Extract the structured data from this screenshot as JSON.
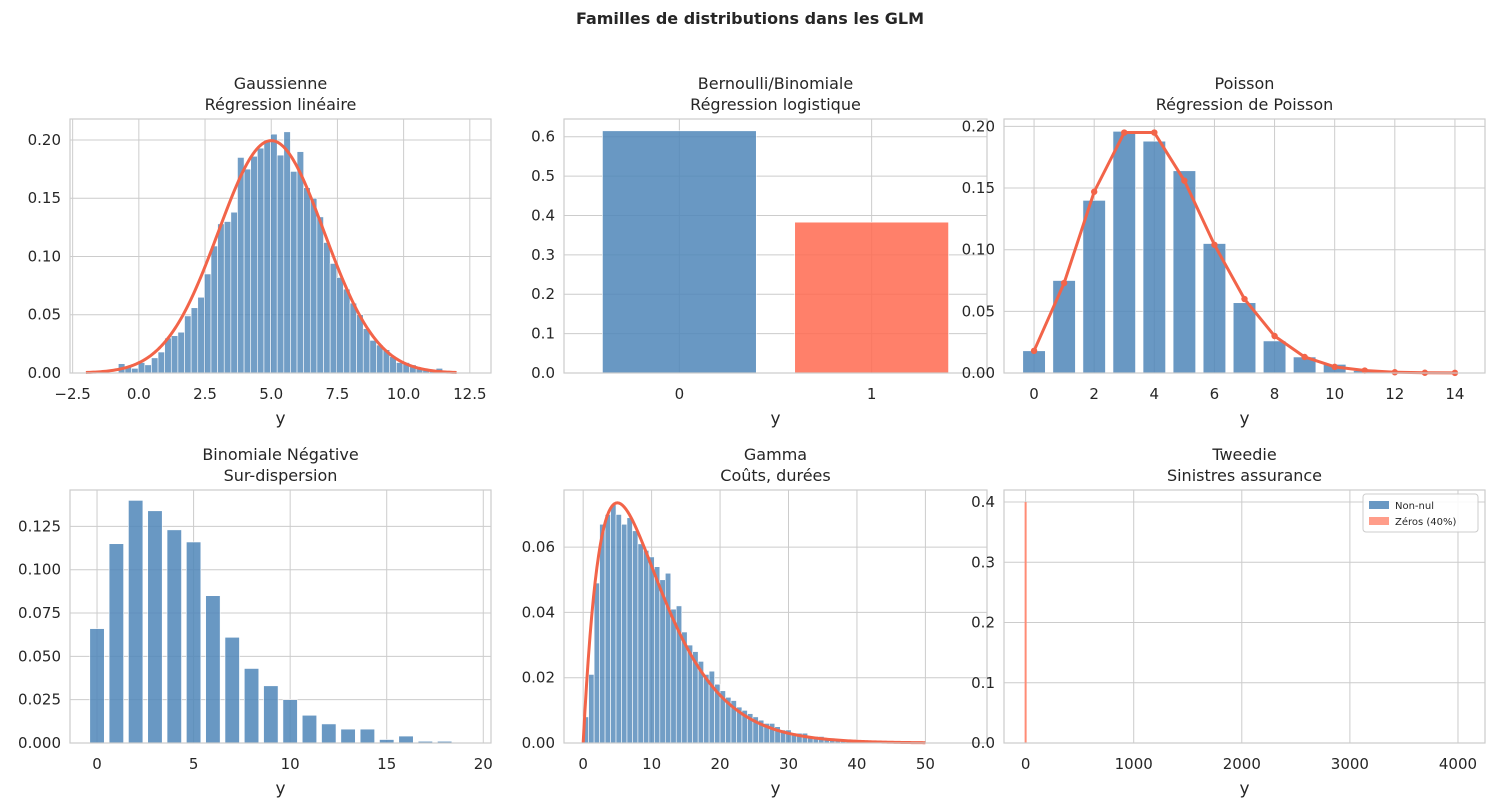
{
  "figure": {
    "title": "Familles de distributions dans les GLM"
  },
  "colors": {
    "bar": "#4f86b8",
    "accent": "#f26449",
    "accent_light": "#ff8c75"
  },
  "chart_data": [
    {
      "type": "bar",
      "title_lines": [
        "Gaussienne",
        "Régression linéaire"
      ],
      "xlabel": "y",
      "xlim": [
        -2.6,
        13.3
      ],
      "ylim": [
        0,
        0.218
      ],
      "xticks": [
        -2.5,
        0.0,
        2.5,
        5.0,
        7.5,
        10.0,
        12.5
      ],
      "xtick_labels": [
        "−2.5",
        "0.0",
        "2.5",
        "5.0",
        "7.5",
        "10.0",
        "12.5"
      ],
      "yticks": [
        0,
        0.05,
        0.1,
        0.15,
        0.2
      ],
      "ytick_labels": [
        "0.00",
        "0.05",
        "0.10",
        "0.15",
        "0.20"
      ],
      "bar_width": 0.25,
      "bar_opacity": 0.8,
      "bars_x": [
        -0.65,
        -0.4,
        -0.15,
        0.1,
        0.35,
        0.6,
        0.85,
        1.1,
        1.35,
        1.6,
        1.85,
        2.1,
        2.35,
        2.6,
        2.85,
        3.1,
        3.35,
        3.6,
        3.85,
        4.1,
        4.35,
        4.6,
        4.85,
        5.1,
        5.35,
        5.6,
        5.85,
        6.1,
        6.35,
        6.6,
        6.85,
        7.1,
        7.35,
        7.6,
        7.85,
        8.1,
        8.35,
        8.6,
        8.85,
        9.1,
        9.35,
        9.6,
        9.85,
        10.1,
        10.35,
        10.6,
        10.85,
        11.1,
        11.35,
        11.6
      ],
      "bars_y": [
        0.008,
        0.005,
        0.004,
        0.009,
        0.007,
        0.013,
        0.018,
        0.03,
        0.032,
        0.035,
        0.049,
        0.056,
        0.065,
        0.085,
        0.109,
        0.128,
        0.13,
        0.138,
        0.185,
        0.175,
        0.186,
        0.193,
        0.2,
        0.205,
        0.187,
        0.207,
        0.173,
        0.19,
        0.159,
        0.15,
        0.134,
        0.112,
        0.094,
        0.082,
        0.072,
        0.06,
        0.05,
        0.038,
        0.028,
        0.024,
        0.02,
        0.014,
        0.009,
        0.009,
        0.007,
        0.004,
        0.003,
        0.002,
        0.004,
        0.001
      ],
      "curve": {
        "kind": "normal",
        "mu": 5,
        "sigma": 2,
        "from": -2,
        "to": 12
      }
    },
    {
      "type": "bar",
      "title_lines": [
        "Bernoulli/Binomiale",
        "Régression logistique"
      ],
      "xlabel": "y",
      "xlim": [
        -0.6,
        1.6
      ],
      "ylim": [
        0,
        0.645
      ],
      "xticks": [
        0,
        1
      ],
      "xtick_labels": [
        "0",
        "1"
      ],
      "yticks": [
        0,
        0.1,
        0.2,
        0.3,
        0.4,
        0.5,
        0.6
      ],
      "ytick_labels": [
        "0.0",
        "0.1",
        "0.2",
        "0.3",
        "0.4",
        "0.5",
        "0.6"
      ],
      "bar_width": 0.8,
      "bar_opacity": 0.85,
      "bars_x": [
        0,
        1
      ],
      "bars_y": [
        0.615,
        0.383
      ],
      "bar_colors": [
        "#4f86b8",
        "#ff6a50"
      ]
    },
    {
      "type": "bar",
      "title_lines": [
        "Poisson",
        "Régression de Poisson"
      ],
      "xlabel": "y",
      "xlim": [
        -1.0,
        15.0
      ],
      "ylim": [
        0,
        0.206
      ],
      "xticks": [
        0,
        2,
        4,
        6,
        8,
        10,
        12,
        14
      ],
      "xtick_labels": [
        "0",
        "2",
        "4",
        "6",
        "8",
        "10",
        "12",
        "14"
      ],
      "yticks": [
        0,
        0.05,
        0.1,
        0.15,
        0.2
      ],
      "ytick_labels": [
        "0.00",
        "0.05",
        "0.10",
        "0.15",
        "0.20"
      ],
      "bar_width": 0.75,
      "bar_opacity": 0.85,
      "bars_x": [
        0,
        1,
        2,
        3,
        4,
        5,
        6,
        7,
        8,
        9,
        10,
        11,
        12,
        13,
        14
      ],
      "bars_y": [
        0.018,
        0.075,
        0.14,
        0.196,
        0.188,
        0.164,
        0.105,
        0.057,
        0.026,
        0.013,
        0.007,
        0.002,
        0.001,
        0.0005,
        0.0002
      ],
      "points": {
        "x": [
          0,
          1,
          2,
          3,
          4,
          5,
          6,
          7,
          8,
          9,
          10,
          11,
          12,
          13,
          14
        ],
        "y": [
          0.018,
          0.073,
          0.147,
          0.195,
          0.195,
          0.156,
          0.104,
          0.06,
          0.03,
          0.013,
          0.005,
          0.002,
          0.0006,
          0.0002,
          0.0001
        ]
      }
    },
    {
      "type": "bar",
      "title_lines": [
        "Binomiale Négative",
        "Sur-dispersion"
      ],
      "xlabel": "y",
      "xlim": [
        -1.4,
        20.4
      ],
      "ylim": [
        0,
        0.146
      ],
      "xticks": [
        0,
        5,
        10,
        15,
        20
      ],
      "xtick_labels": [
        "0",
        "5",
        "10",
        "15",
        "20"
      ],
      "yticks": [
        0,
        0.025,
        0.05,
        0.075,
        0.1,
        0.125
      ],
      "ytick_labels": [
        "0.000",
        "0.025",
        "0.050",
        "0.075",
        "0.100",
        "0.125"
      ],
      "bar_width": 0.75,
      "bar_opacity": 0.85,
      "bars_x": [
        0,
        1,
        2,
        3,
        4,
        5,
        6,
        7,
        8,
        9,
        10,
        11,
        12,
        13,
        14,
        15,
        16,
        17,
        18
      ],
      "bars_y": [
        0.066,
        0.115,
        0.14,
        0.134,
        0.123,
        0.116,
        0.085,
        0.061,
        0.043,
        0.033,
        0.025,
        0.016,
        0.011,
        0.008,
        0.008,
        0.002,
        0.004,
        0.001,
        0.001
      ]
    },
    {
      "type": "bar",
      "title_lines": [
        "Gamma",
        "Coûts, durées"
      ],
      "xlabel": "y",
      "xlim": [
        -2.8,
        59.0
      ],
      "ylim": [
        0,
        0.0775
      ],
      "xticks": [
        0,
        10,
        20,
        30,
        40,
        50
      ],
      "xtick_labels": [
        "0",
        "10",
        "20",
        "30",
        "40",
        "50"
      ],
      "yticks": [
        0,
        0.02,
        0.04,
        0.06
      ],
      "ytick_labels": [
        "0.00",
        "0.02",
        "0.04",
        "0.06"
      ],
      "bar_width": 0.8,
      "bar_opacity": 0.8,
      "bars_x": [
        0.4,
        1.2,
        2.0,
        2.8,
        3.6,
        4.4,
        5.2,
        6.0,
        6.8,
        7.6,
        8.4,
        9.2,
        10.0,
        10.8,
        11.6,
        12.4,
        13.2,
        14.0,
        14.8,
        15.6,
        16.4,
        17.2,
        18.0,
        18.8,
        19.6,
        20.4,
        21.2,
        22.0,
        22.8,
        23.6,
        24.4,
        25.2,
        26.0,
        26.8,
        27.6,
        28.4,
        29.2,
        30.0,
        30.8,
        31.6,
        32.4,
        33.2,
        34.0,
        34.8,
        35.6,
        36.4,
        37.2,
        38.0,
        38.8,
        39.6,
        40.4,
        41.2,
        42.0,
        43.6,
        45.2,
        47.6,
        49.2
      ],
      "bars_y": [
        0.008,
        0.021,
        0.049,
        0.067,
        0.07,
        0.073,
        0.07,
        0.067,
        0.069,
        0.065,
        0.061,
        0.059,
        0.057,
        0.054,
        0.05,
        0.052,
        0.041,
        0.042,
        0.034,
        0.03,
        0.028,
        0.025,
        0.021,
        0.022,
        0.018,
        0.016,
        0.014,
        0.013,
        0.011,
        0.01,
        0.009,
        0.008,
        0.007,
        0.006,
        0.006,
        0.005,
        0.004,
        0.004,
        0.003,
        0.003,
        0.003,
        0.002,
        0.002,
        0.002,
        0.0015,
        0.0015,
        0.001,
        0.001,
        0.001,
        0.001,
        0.0008,
        0.0008,
        0.0006,
        0.0005,
        0.0005,
        0.0004,
        0.0003
      ],
      "curve": {
        "kind": "gamma",
        "shape": 2,
        "scale": 5,
        "from": 0,
        "to": 50
      }
    },
    {
      "type": "bar",
      "title_lines": [
        "Tweedie",
        "Sinistres assurance"
      ],
      "xlabel": "y",
      "xlim": [
        -200,
        4250
      ],
      "ylim": [
        0,
        0.42
      ],
      "xticks": [
        0,
        1000,
        2000,
        3000,
        4000
      ],
      "xtick_labels": [
        "0",
        "1000",
        "2000",
        "3000",
        "4000"
      ],
      "yticks": [
        0,
        0.1,
        0.2,
        0.3,
        0.4
      ],
      "ytick_labels": [
        "0.0",
        "0.1",
        "0.2",
        "0.3",
        "0.4"
      ],
      "spike": {
        "x": 0,
        "y": 0.4
      },
      "legend": [
        {
          "label": "Non-nul",
          "color": "#4f86b8"
        },
        {
          "label": "Zéros (40%)",
          "color": "#ff8c75"
        }
      ]
    }
  ]
}
